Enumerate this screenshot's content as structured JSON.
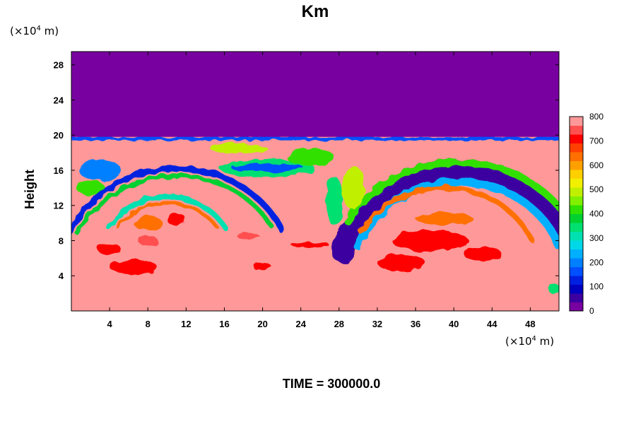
{
  "chart_data": {
    "type": "heatmap",
    "title": "Km",
    "ylabel": "Height",
    "xlabel": "",
    "x_unit_prefix": "(×10",
    "x_unit_exp": "4",
    "x_unit_suffix": " m)",
    "y_unit_prefix": "(×10",
    "y_unit_exp": "4",
    "y_unit_suffix": " m)",
    "xlim": [
      0,
      51
    ],
    "ylim": [
      0,
      29.5
    ],
    "x_ticks": [
      4,
      8,
      12,
      16,
      20,
      24,
      28,
      32,
      36,
      40,
      44,
      48
    ],
    "x_tick_labels": [
      "4",
      "8",
      "12",
      "16",
      "20",
      "24",
      "28",
      "32",
      "36",
      "40",
      "44",
      "48"
    ],
    "y_ticks": [
      4,
      8,
      12,
      16,
      20,
      24,
      28
    ],
    "y_tick_labels": [
      "4",
      "8",
      "12",
      "16",
      "20",
      "24",
      "28"
    ],
    "colorbar": {
      "range": [
        0,
        800
      ],
      "ticks": [
        0,
        100,
        200,
        300,
        400,
        500,
        600,
        700,
        800
      ],
      "tick_labels": [
        "0",
        "100",
        "200",
        "300",
        "400",
        "500",
        "600",
        "700",
        "800"
      ],
      "colors": [
        "#7800a0",
        "#3c00a0",
        "#0000c0",
        "#0020e0",
        "#0050ff",
        "#0080ff",
        "#00b0ff",
        "#00d8e8",
        "#00e0b0",
        "#00e070",
        "#00d030",
        "#30e000",
        "#80f000",
        "#c0f000",
        "#f0f000",
        "#ffd000",
        "#ffa000",
        "#ff7000",
        "#ff4000",
        "#ff0000",
        "#ff5050",
        "#ff9898"
      ]
    },
    "background_value": 800,
    "upper_layer": {
      "y_from": 19.8,
      "y_to": 29.5,
      "value": 0
    },
    "features": [
      {
        "kind": "band",
        "x0": 0,
        "x1": 51,
        "y_center": 19.6,
        "thickness": 0.4,
        "value": 150
      },
      {
        "kind": "arc",
        "cx": 40.5,
        "cy": 3.5,
        "r": 12.5,
        "thickness": 2.6,
        "a0": 15,
        "a1": 165,
        "value": 60
      },
      {
        "kind": "arc",
        "cx": 40.5,
        "cy": 3.5,
        "r": 11.2,
        "thickness": 0.9,
        "a0": 20,
        "a1": 160,
        "value": 250
      },
      {
        "kind": "arc",
        "cx": 40.5,
        "cy": 3.5,
        "r": 13.4,
        "thickness": 0.8,
        "a0": 15,
        "a1": 150,
        "value": 420
      },
      {
        "kind": "arc",
        "cx": 39.0,
        "cy": 4.0,
        "r": 10.0,
        "thickness": 0.6,
        "a0": 25,
        "a1": 150,
        "value": 650
      },
      {
        "kind": "arc",
        "cx": 11.0,
        "cy": 4.0,
        "r": 12.2,
        "thickness": 0.7,
        "a0": 25,
        "a1": 160,
        "value": 120
      },
      {
        "kind": "arc",
        "cx": 11.0,
        "cy": 4.0,
        "r": 11.4,
        "thickness": 0.5,
        "a0": 30,
        "a1": 155,
        "value": 380
      },
      {
        "kind": "arc",
        "cx": 10.0,
        "cy": 6.0,
        "r": 7.0,
        "thickness": 0.6,
        "a0": 30,
        "a1": 150,
        "value": 300
      },
      {
        "kind": "arc",
        "cx": 10.0,
        "cy": 6.0,
        "r": 6.3,
        "thickness": 0.4,
        "a0": 35,
        "a1": 145,
        "value": 650
      },
      {
        "kind": "blob",
        "x": 3.0,
        "y": 16.0,
        "rx": 2.2,
        "ry": 1.2,
        "value": 200
      },
      {
        "kind": "blob",
        "x": 2.0,
        "y": 14.0,
        "rx": 1.5,
        "ry": 0.8,
        "value": 420
      },
      {
        "kind": "blob",
        "x": 20.5,
        "y": 16.2,
        "rx": 5.0,
        "ry": 1.0,
        "value": 350
      },
      {
        "kind": "blob",
        "x": 20.5,
        "y": 16.3,
        "rx": 3.8,
        "ry": 0.45,
        "value": 160
      },
      {
        "kind": "blob",
        "x": 17.5,
        "y": 18.5,
        "rx": 3.0,
        "ry": 0.6,
        "value": 500
      },
      {
        "kind": "blob",
        "x": 25.0,
        "y": 17.5,
        "rx": 2.5,
        "ry": 1.0,
        "value": 420
      },
      {
        "kind": "blob",
        "x": 27.5,
        "y": 12.5,
        "rx": 0.9,
        "ry": 2.8,
        "value": 350
      },
      {
        "kind": "blob",
        "x": 29.5,
        "y": 14.0,
        "rx": 1.2,
        "ry": 2.5,
        "value": 500
      },
      {
        "kind": "blob",
        "x": 8.0,
        "y": 10.0,
        "rx": 1.5,
        "ry": 0.8,
        "value": 650
      },
      {
        "kind": "blob",
        "x": 11.0,
        "y": 10.4,
        "rx": 1.0,
        "ry": 0.7,
        "value": 700
      },
      {
        "kind": "blob",
        "x": 6.5,
        "y": 5.0,
        "rx": 2.5,
        "ry": 0.8,
        "value": 720
      },
      {
        "kind": "blob",
        "x": 4.0,
        "y": 7.0,
        "rx": 1.2,
        "ry": 0.7,
        "value": 720
      },
      {
        "kind": "blob",
        "x": 8.0,
        "y": 8.0,
        "rx": 1.0,
        "ry": 0.6,
        "value": 740
      },
      {
        "kind": "blob",
        "x": 37.5,
        "y": 8.0,
        "rx": 4.0,
        "ry": 1.2,
        "value": 720
      },
      {
        "kind": "blob",
        "x": 34.5,
        "y": 5.5,
        "rx": 2.5,
        "ry": 1.0,
        "value": 720
      },
      {
        "kind": "blob",
        "x": 43.0,
        "y": 6.5,
        "rx": 2.0,
        "ry": 0.8,
        "value": 720
      },
      {
        "kind": "blob",
        "x": 39.0,
        "y": 10.5,
        "rx": 3.0,
        "ry": 0.7,
        "value": 650
      },
      {
        "kind": "blob",
        "x": 25.0,
        "y": 7.5,
        "rx": 2.0,
        "ry": 0.3,
        "value": 720
      },
      {
        "kind": "blob",
        "x": 20.0,
        "y": 5.0,
        "rx": 1.0,
        "ry": 0.35,
        "value": 720
      },
      {
        "kind": "blob",
        "x": 50.5,
        "y": 2.5,
        "rx": 0.6,
        "ry": 0.6,
        "value": 350
      },
      {
        "kind": "blob",
        "x": 18.5,
        "y": 8.5,
        "rx": 1.2,
        "ry": 0.3,
        "value": 740
      }
    ]
  },
  "footer": {
    "time_label": "TIME = 300000.0"
  }
}
